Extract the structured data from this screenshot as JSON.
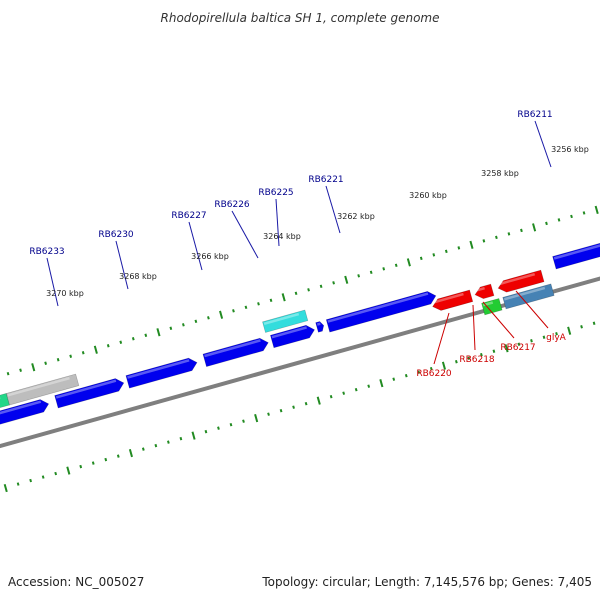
{
  "title": "Rhodopirellula baltica SH 1, complete genome",
  "footer": {
    "accession": "Accession: NC_005027",
    "summary": "Topology: circular; Length: 7,145,576 bp; Genes: 7,405"
  },
  "colors": {
    "forward_gene": "#0000ee",
    "reverse_gene": "#ee0000",
    "forward_label": "#00008b",
    "reverse_label": "#cc0000",
    "backbone": "#888888",
    "ticks": "#228b22"
  },
  "ticks": [
    {
      "label": "3256 kbp"
    },
    {
      "label": "3258 kbp"
    },
    {
      "label": "3260 kbp"
    },
    {
      "label": "3262 kbp"
    },
    {
      "label": "3264 kbp"
    },
    {
      "label": "3266 kbp"
    },
    {
      "label": "3268 kbp"
    },
    {
      "label": "3270 kbp"
    }
  ],
  "forward_labels": [
    {
      "name": "RB6211"
    },
    {
      "name": "RB6221"
    },
    {
      "name": "RB6225"
    },
    {
      "name": "RB6226"
    },
    {
      "name": "RB6227"
    },
    {
      "name": "RB6230"
    },
    {
      "name": "RB6233"
    }
  ],
  "reverse_labels": [
    {
      "name": "glyA"
    },
    {
      "name": "RB6217"
    },
    {
      "name": "RB6218"
    },
    {
      "name": "RB6220"
    }
  ]
}
